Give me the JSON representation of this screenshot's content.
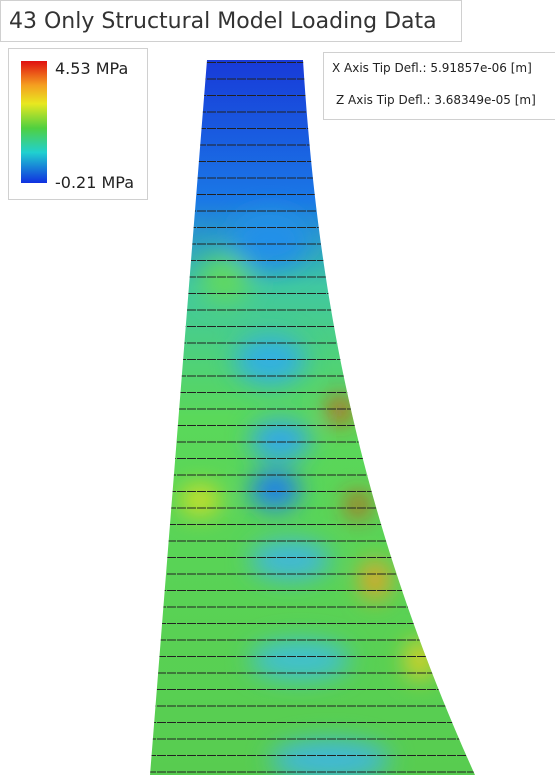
{
  "header": {
    "title": "43 Only Structural Model Loading Data"
  },
  "legend": {
    "max_label": "4.53 MPa",
    "min_label": "-0.21 MPa"
  },
  "annotations": {
    "x_defl": "X Axis Tip Defl.: 5.91857e-06 [m]",
    "z_defl": "Z Axis Tip Defl.: 3.68349e-05 [m]"
  }
}
